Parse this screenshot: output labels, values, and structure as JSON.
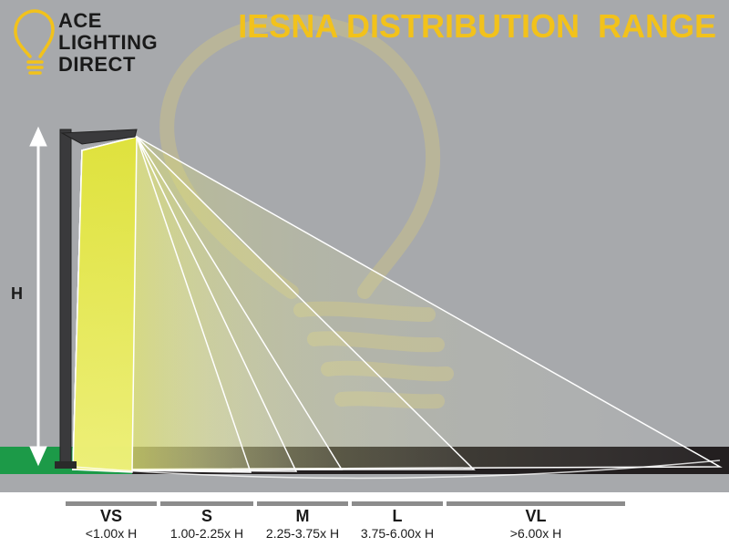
{
  "logo": {
    "line1": "ACE",
    "line2": "LIGHTING",
    "line3": "DIRECT",
    "icon": "lightbulb-icon"
  },
  "title": "IESNA DISTRIBUTION  RANGE",
  "height_label": "H",
  "ranges": [
    {
      "code": "VS",
      "desc": "<1.00x H"
    },
    {
      "code": "S",
      "desc": "1.00-2.25x H"
    },
    {
      "code": "M",
      "desc": "2.25-3.75x H"
    },
    {
      "code": "L",
      "desc": "3.75-6.00x H"
    },
    {
      "code": "VL",
      "desc": ">6.00x H"
    }
  ],
  "colors": {
    "background": "#a7a9ac",
    "title": "#f2c21b",
    "ground_near": "#1c9a48",
    "ground_far": "#231f20",
    "pole": "#3a3a3c",
    "light": "#e8e85a",
    "range_bar": "#8c8c8c"
  }
}
